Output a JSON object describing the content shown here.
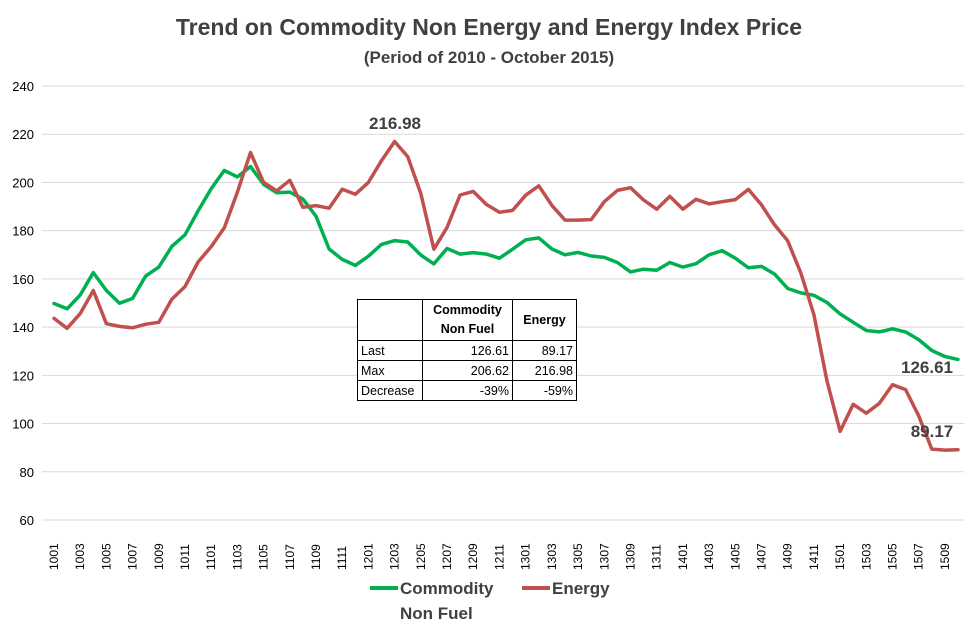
{
  "chart_data": {
    "type": "line",
    "title": "Trend on Commodity Non Energy and Energy Index Price",
    "subtitle": "(Period of 2010 - October 2015)",
    "ylim": [
      60,
      240
    ],
    "yticks": [
      60,
      80,
      100,
      120,
      140,
      160,
      180,
      200,
      220,
      240
    ],
    "grid": true,
    "legend_position": "bottom",
    "tick_labels": [
      "1001",
      "1003",
      "1005",
      "1007",
      "1009",
      "1011",
      "1101",
      "1103",
      "1105",
      "1107",
      "1109",
      "1111",
      "1201",
      "1203",
      "1205",
      "1207",
      "1209",
      "1211",
      "1301",
      "1303",
      "1305",
      "1307",
      "1309",
      "1311",
      "1401",
      "1403",
      "1405",
      "1407",
      "1409",
      "1411",
      "1501",
      "1503",
      "1505",
      "1507",
      "1509"
    ],
    "series": [
      {
        "name": "Commodity Non Fuel",
        "color": "#00b050",
        "values": [
          149.8,
          147.6,
          153.3,
          162.6,
          155.2,
          149.9,
          151.9,
          161.2,
          164.9,
          173.5,
          178.3,
          188.2,
          197.4,
          205.0,
          202.3,
          206.6,
          199.2,
          195.7,
          196.0,
          193.1,
          186.0,
          172.4,
          168.1,
          165.6,
          169.4,
          174.3,
          175.9,
          175.3,
          169.9,
          166.2,
          172.6,
          170.3,
          170.9,
          170.3,
          168.6,
          172.3,
          176.2,
          177.0,
          172.4,
          170.0,
          171.0,
          169.5,
          168.9,
          166.8,
          162.9,
          164.0,
          163.6,
          166.8,
          164.9,
          166.3,
          170.0,
          171.7,
          168.6,
          164.6,
          165.2,
          162.0,
          156.0,
          154.2,
          153.2,
          150.2,
          145.5,
          142.0,
          138.6,
          138.0,
          139.3,
          138.0,
          134.8,
          130.3,
          127.8,
          126.61
        ]
      },
      {
        "name": "Energy",
        "color": "#c0504d",
        "values": [
          143.6,
          139.5,
          145.6,
          155.2,
          141.4,
          140.3,
          139.7,
          141.2,
          142.0,
          151.6,
          156.8,
          167.0,
          173.4,
          181.2,
          196.0,
          212.4,
          200.0,
          196.5,
          200.9,
          189.7,
          190.4,
          189.3,
          197.2,
          195.1,
          200.0,
          209.0,
          216.98,
          210.7,
          195.4,
          172.3,
          181.3,
          194.8,
          196.3,
          190.9,
          187.6,
          188.4,
          194.7,
          198.6,
          190.5,
          184.4,
          184.4,
          184.6,
          192.0,
          196.7,
          197.8,
          192.7,
          188.9,
          194.2,
          188.9,
          193.0,
          191.1,
          192.0,
          192.9,
          197.1,
          190.7,
          182.4,
          175.8,
          162.5,
          145.2,
          117.6,
          96.8,
          108.0,
          104.3,
          108.4,
          116.1,
          114.1,
          103.2,
          89.4,
          89.0,
          89.17
        ]
      }
    ],
    "annotations": {
      "energy_max": "216.98",
      "non_fuel_last": "126.61",
      "energy_last": "89.17"
    },
    "table": {
      "header": [
        "",
        "Commodity\nNon Fuel",
        "Energy"
      ],
      "rows": [
        {
          "label": "Last",
          "non_fuel": "126.61",
          "energy": "89.17"
        },
        {
          "label": "Max",
          "non_fuel": "206.62",
          "energy": "216.98"
        },
        {
          "label": "Decrease",
          "non_fuel": "-39%",
          "energy": "-59%"
        }
      ]
    },
    "legend": {
      "non_fuel_line1": "Commodity",
      "non_fuel_line2": "Non Fuel",
      "energy": "Energy"
    }
  }
}
